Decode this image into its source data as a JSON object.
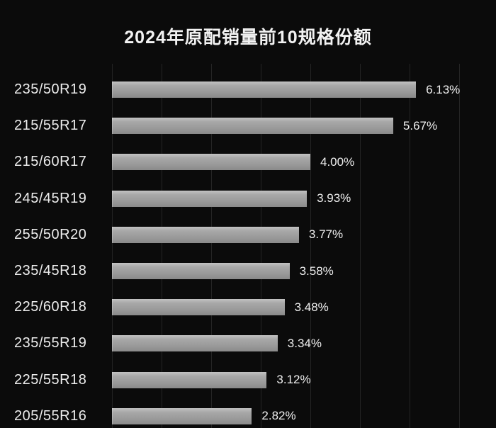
{
  "title": "2024年原配销量前10规格份额",
  "chart_data": {
    "type": "bar",
    "orientation": "horizontal",
    "title": "2024年原配销量前10规格份额",
    "categories": [
      "235/50R19",
      "215/55R17",
      "215/60R17",
      "245/45R19",
      "255/50R20",
      "235/45R18",
      "225/60R18",
      "235/55R19",
      "225/55R18",
      "205/55R16"
    ],
    "values": [
      6.13,
      5.67,
      4.0,
      3.93,
      3.77,
      3.58,
      3.48,
      3.34,
      3.12,
      2.82
    ],
    "value_labels": [
      "6.13%",
      "5.67%",
      "4.00%",
      "3.93%",
      "3.77%",
      "3.58%",
      "3.48%",
      "3.34%",
      "3.12%",
      "2.82%"
    ],
    "xlabel": "",
    "ylabel": "",
    "xlim": [
      0,
      7
    ],
    "grid": "on",
    "grid_step_percent": 1,
    "legend": "none",
    "colors": {
      "background": "#0b0b0b",
      "bar": "#a0a0a0",
      "gridline": "#242424",
      "text": "#ededed",
      "title_text": "#f2f2f2"
    }
  }
}
